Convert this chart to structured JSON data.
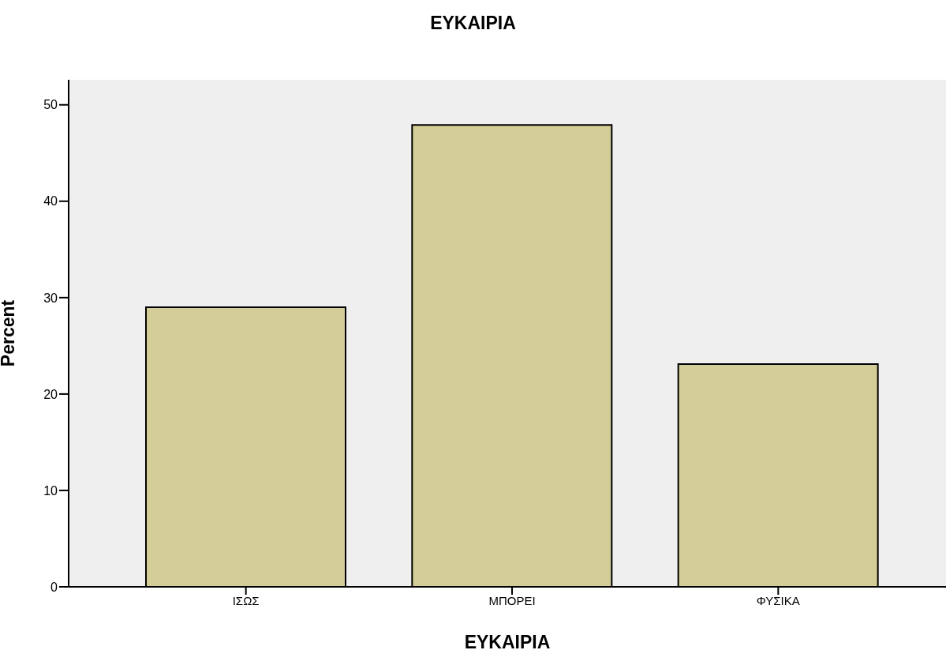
{
  "chart_data": {
    "type": "bar",
    "title": "ΕΥΚΑΙΡΙΑ",
    "xlabel": "ΕΥΚΑΙΡΙΑ",
    "ylabel": "Percent",
    "categories": [
      "ΙΣΩΣ",
      "ΜΠΟΡΕΙ",
      "ΦΥΣΙΚΑ"
    ],
    "values": [
      29.0,
      47.9,
      23.1
    ],
    "color": "#d3ce97",
    "ylim": [
      0,
      52.6
    ],
    "yticks": [
      0,
      10,
      20,
      30,
      40,
      50
    ]
  }
}
